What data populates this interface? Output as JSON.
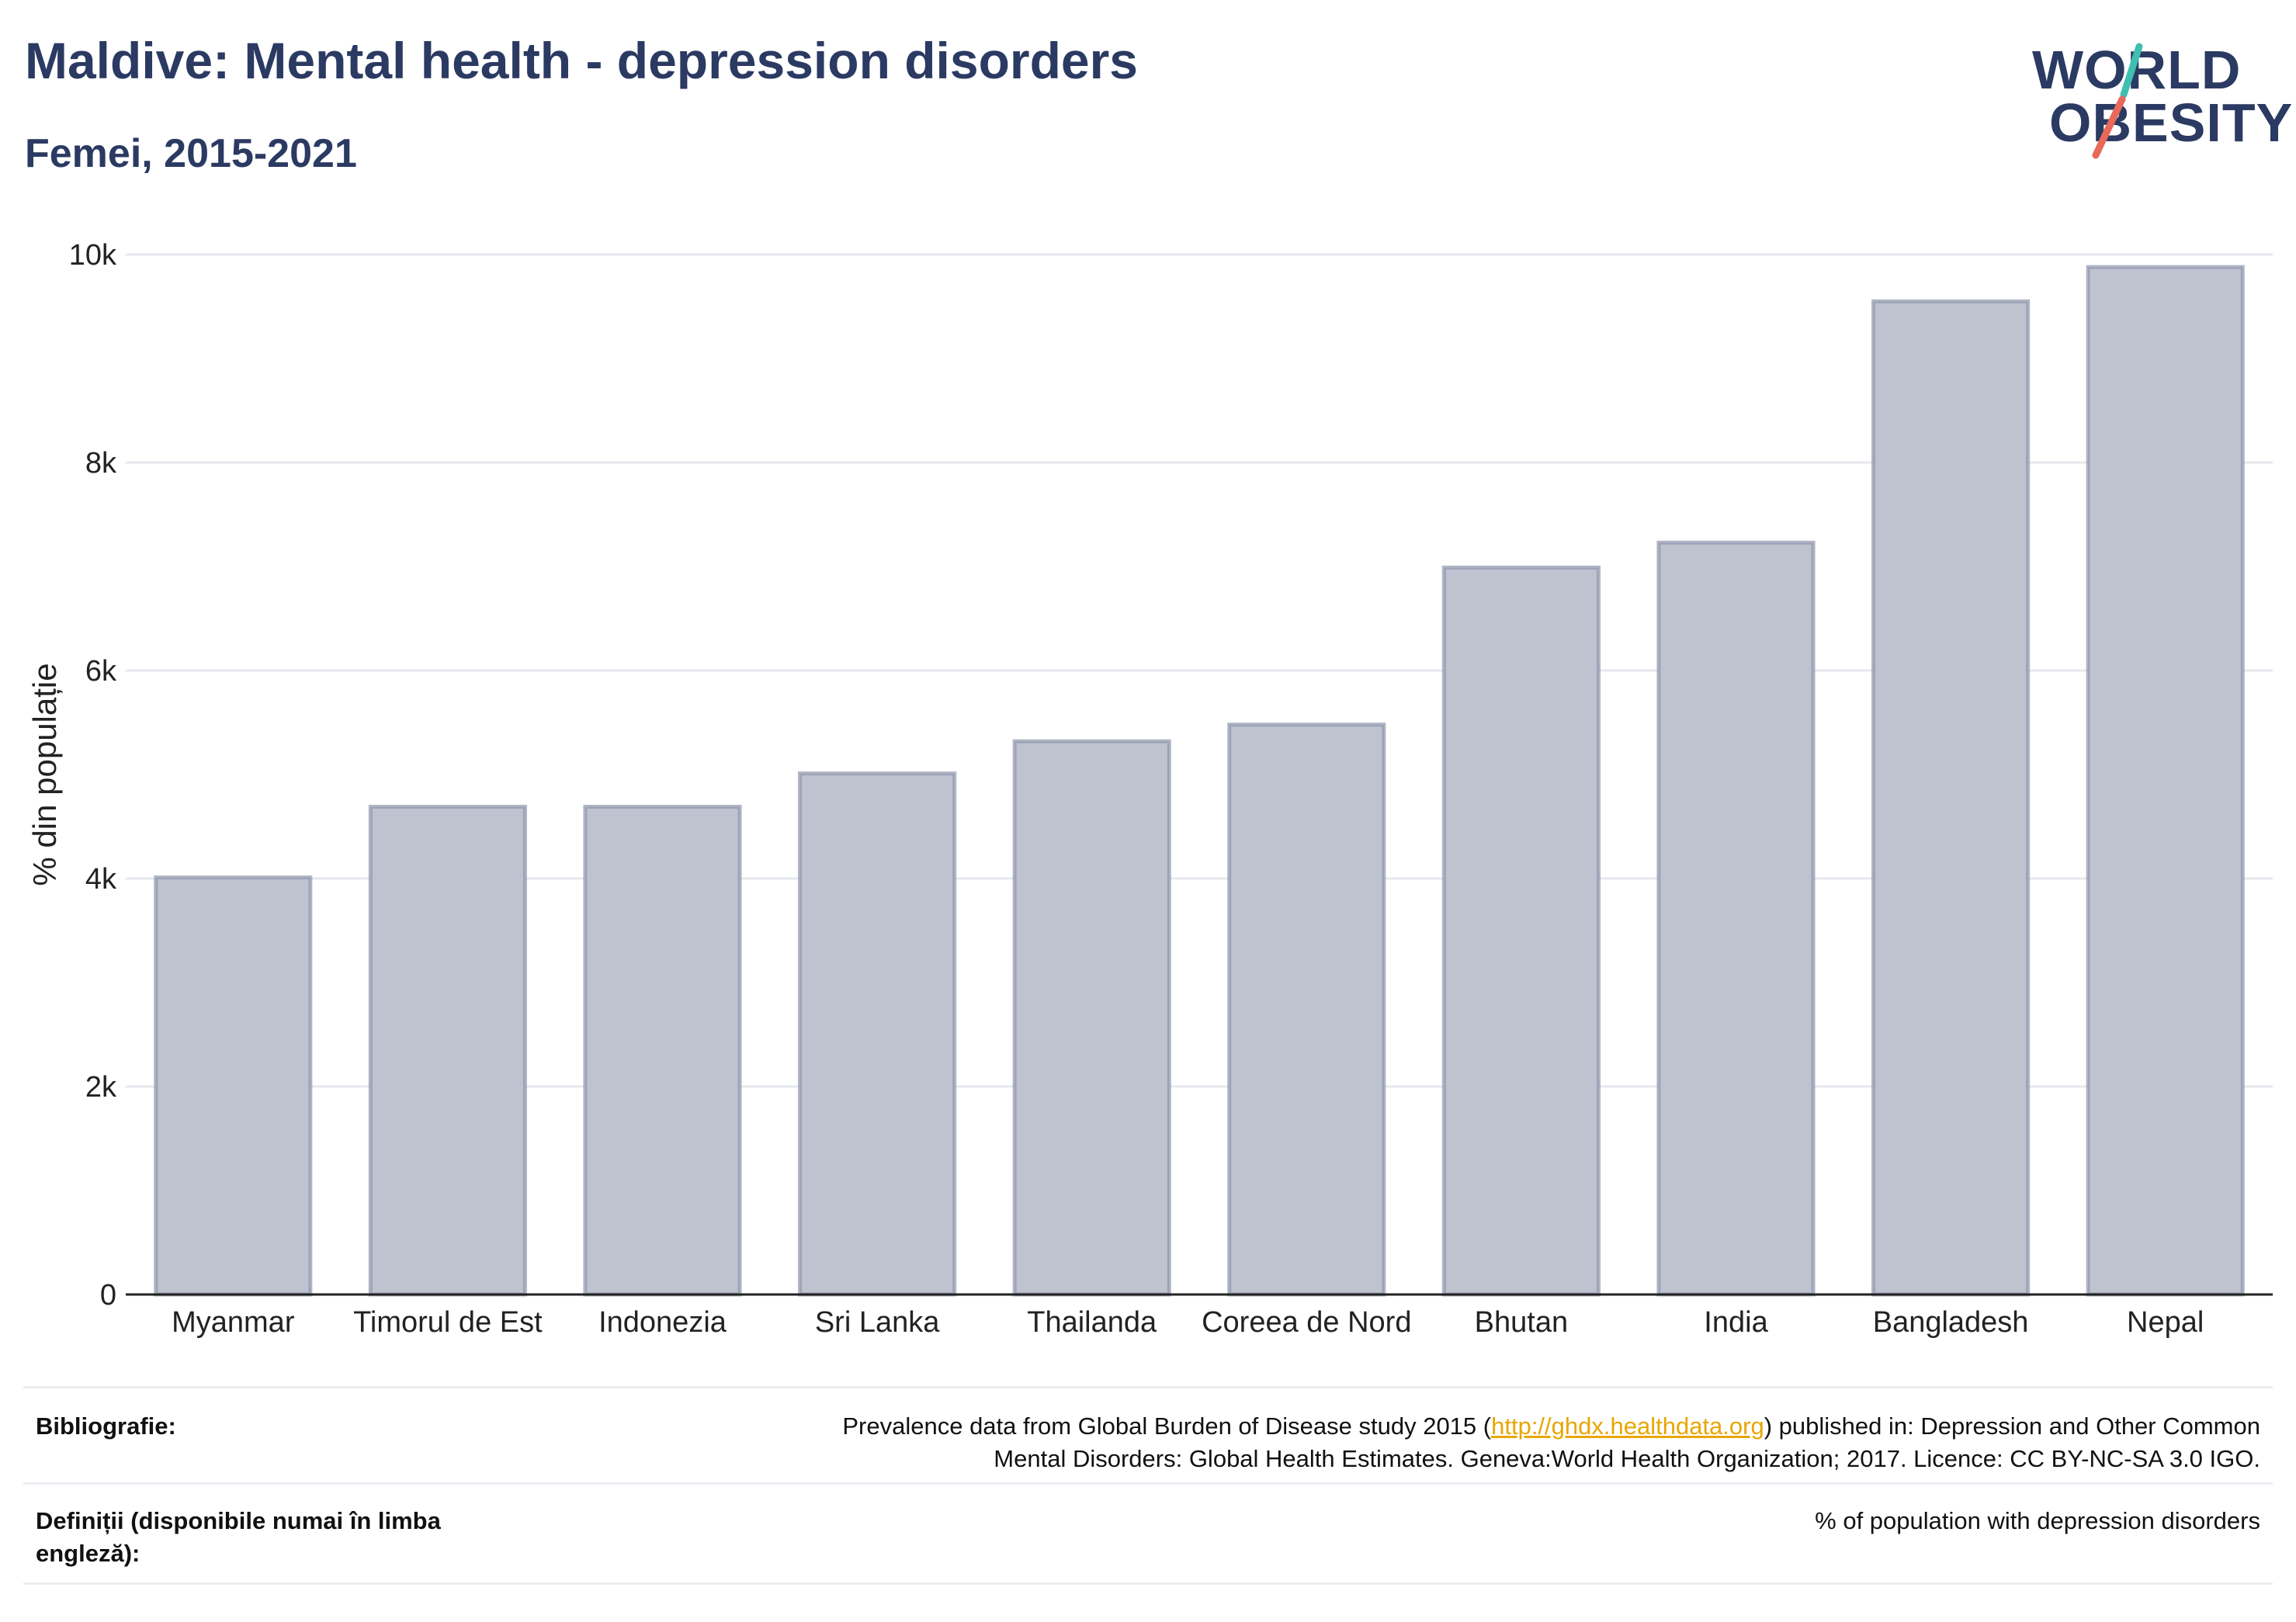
{
  "header": {
    "title": "Maldive: Mental health - depression disorders",
    "subtitle": "Femei, 2015-2021"
  },
  "logo": {
    "line1": "WORLD",
    "line2": "OBESITY",
    "accent_teal": "#3fbfb0",
    "accent_coral": "#e8685a"
  },
  "chart_data": {
    "type": "bar",
    "categories": [
      "Myanmar",
      "Timorul de Est",
      "Indonezia",
      "Sri Lanka",
      "Thailanda",
      "Coreea de Nord",
      "Bhutan",
      "India",
      "Bangladesh",
      "Nepal"
    ],
    "values": [
      4010,
      4690,
      4690,
      5010,
      5320,
      5480,
      6990,
      7230,
      9550,
      9880
    ],
    "ylabel": "% din populație",
    "xlabel": "",
    "ylim": [
      0,
      10000
    ],
    "yticks": [
      0,
      2000,
      4000,
      6000,
      8000,
      10000
    ],
    "ytick_labels": [
      "0",
      "2k",
      "4k",
      "6k",
      "8k",
      "10k"
    ],
    "grid": true,
    "bar_color": "#bfc3cf",
    "bar_edge_color": "#8f96ad"
  },
  "footer": {
    "bibliography_label": "Bibliografie:",
    "bibliography_pre": "Prevalence data from Global Burden of Disease study 2015 (",
    "bibliography_link": "http://ghdx.healthdata.org",
    "bibliography_post": ") published in: Depression and Other Common",
    "bibliography_line2": "Mental Disorders: Global Health Estimates. Geneva:World Health Organization; 2017. Licence: CC BY-NC-SA 3.0 IGO.",
    "definitions_label": "Definiții (disponibile numai în limba engleză):",
    "definitions_value": "% of population with depression disorders"
  }
}
